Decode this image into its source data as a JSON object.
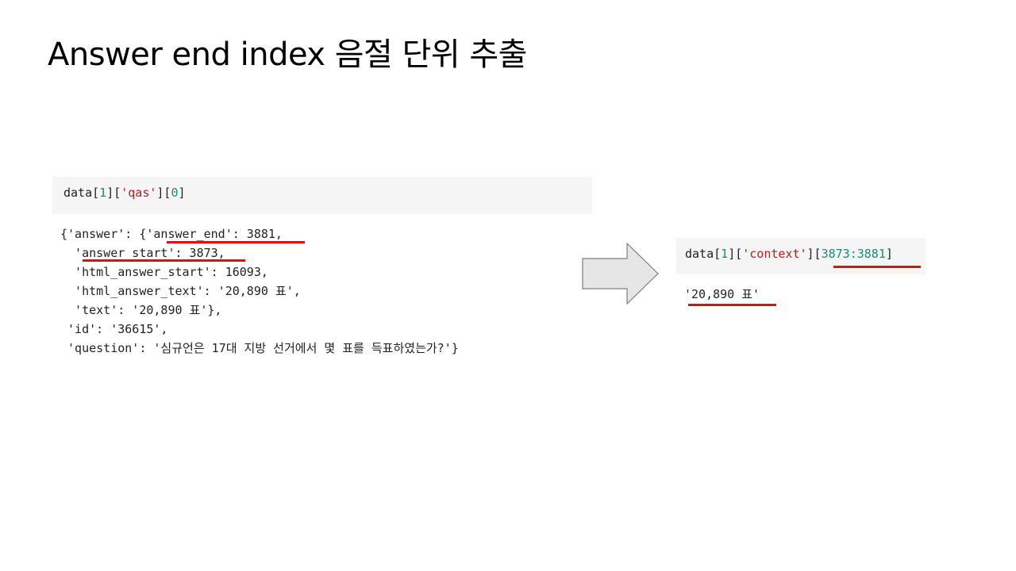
{
  "slide": {
    "title": "Answer end index 음절 단위 추출"
  },
  "left_cell": {
    "input": {
      "prefix": "data[",
      "idx1": "1",
      "mid1": "][",
      "key": "'qas'",
      "mid2": "][",
      "idx2": "0",
      "suffix": "]"
    },
    "output_lines": [
      "{'answer': {'answer_end': 3881,",
      "  'answer_start': 3873,",
      "  'html_answer_start': 16093,",
      "  'html_answer_text': '20,890 표',",
      "  'text': '20,890 표'},",
      " 'id': '36615',",
      " 'question': '심규언은 17대 지방 선거에서 몇 표를 득표하였는가?'}"
    ]
  },
  "right_cell": {
    "input": {
      "prefix": "data[",
      "idx1": "1",
      "mid1": "][",
      "key": "'context'",
      "mid2": "][",
      "slice": "3873:3881",
      "suffix": "]"
    },
    "output": "'20,890 표'"
  },
  "colors": {
    "underline": "#e01010",
    "number": "#1a8a7a",
    "string": "#b22222",
    "cell_background": "#f5f5f5"
  }
}
